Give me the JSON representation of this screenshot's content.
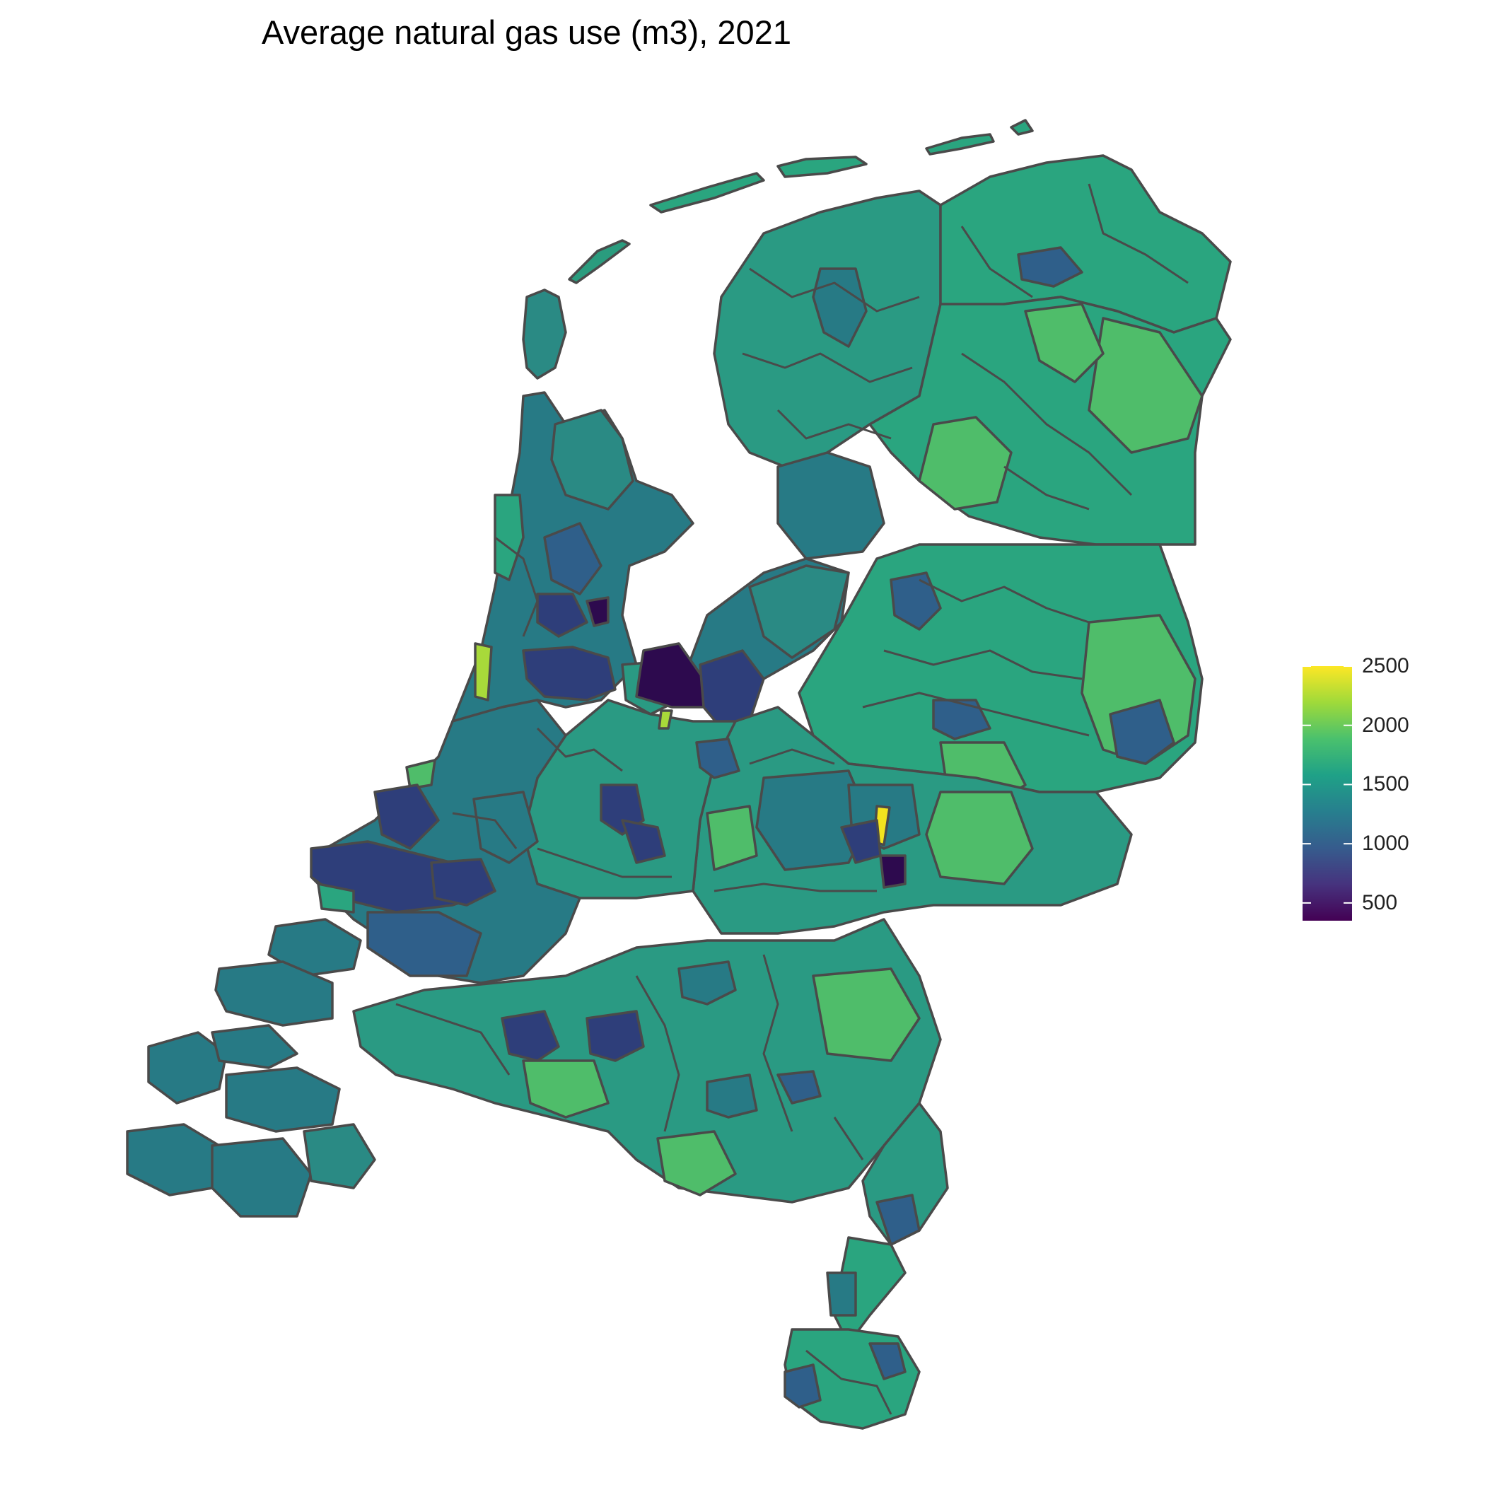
{
  "title": "Average natural gas use (m3), 2021",
  "legend": {
    "min": 350,
    "max": 2500,
    "ticks": [
      {
        "value": 500,
        "label": "500"
      },
      {
        "value": 1000,
        "label": "1000"
      },
      {
        "value": 1500,
        "label": "1500"
      },
      {
        "value": 2000,
        "label": "2000"
      },
      {
        "value": 2500,
        "label": "2500"
      }
    ],
    "palette": [
      "#440154",
      "#46337E",
      "#365C8D",
      "#277F8E",
      "#1FA187",
      "#4AC16D",
      "#9FDA3A",
      "#FDE725"
    ]
  },
  "colors": {
    "border": "#4a4a4a",
    "base_fill": "#2b9486",
    "dark_purple": "#2d0a4e",
    "navy": "#2e3e7a",
    "blue": "#2f5f8a",
    "teal": "#277a85",
    "green": "#2aa57f",
    "light_green": "#4fbd6a",
    "lime": "#a8d93a",
    "yellow": "#f3e31e"
  }
}
